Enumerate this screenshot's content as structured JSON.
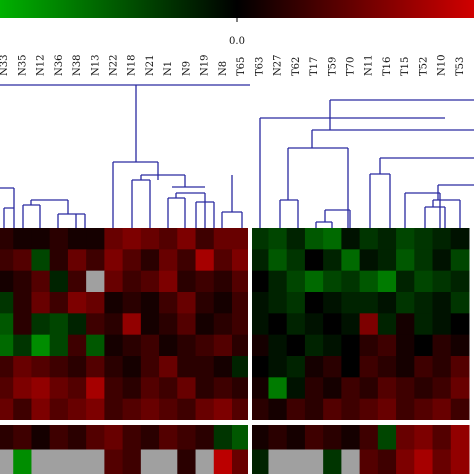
{
  "chart_data": {
    "type": "heatmap",
    "columns": [
      "N33",
      "N35",
      "N12",
      "N36",
      "N38",
      "N13",
      "N22",
      "N18",
      "N21",
      "N1",
      "N9",
      "N19",
      "N8",
      "T65",
      "T63",
      "N27",
      "T62",
      "T17",
      "T59",
      "T70",
      "N11",
      "T16",
      "T15",
      "T52",
      "N10",
      "T53"
    ],
    "color_scale": [
      "#00b000",
      "#000000",
      "#d00000"
    ],
    "clim": [
      -1,
      1
    ],
    "colorbar_ticks": [
      {
        "value": 0,
        "label": "0.0"
      }
    ],
    "missing_color": "#a0a0a0",
    "rows": [
      [
        0.2,
        0.1,
        0.1,
        0.2,
        0.1,
        0.1,
        0.5,
        0.6,
        0.5,
        0.4,
        0.6,
        0.3,
        0.5,
        0.5,
        -0.3,
        -0.4,
        -0.2,
        -0.5,
        -0.6,
        -0.1,
        -0.3,
        -0.2,
        -0.4,
        -0.3,
        -0.2,
        -0.1
      ],
      [
        0.3,
        0.4,
        -0.4,
        0.2,
        0.5,
        0.3,
        0.6,
        0.4,
        0.2,
        0.5,
        0.3,
        0.8,
        0.4,
        0.6,
        -0.2,
        -0.5,
        -0.3,
        0,
        -0.2,
        -0.6,
        -0.1,
        -0.2,
        -0.5,
        -0.3,
        -0.1,
        -0.4
      ],
      [
        0.1,
        0.2,
        0.4,
        -0.2,
        0.3,
        null,
        0.5,
        0.3,
        0.4,
        0.6,
        0.2,
        0.3,
        0.2,
        0.4,
        0,
        -0.2,
        -0.4,
        -0.6,
        -0.4,
        -0.3,
        -0.5,
        -0.7,
        -0.2,
        -0.4,
        -0.3,
        -0.2
      ],
      [
        -0.3,
        0.2,
        0.5,
        0.3,
        0.6,
        0.5,
        0.1,
        0.2,
        0.1,
        0.3,
        0.5,
        0.2,
        0.1,
        0.3,
        -0.1,
        -0.2,
        -0.3,
        0,
        -0.1,
        -0.2,
        -0.2,
        -0.1,
        -0.3,
        -0.2,
        -0.1,
        -0.3
      ],
      [
        -0.5,
        0.2,
        -0.3,
        -0.4,
        -0.2,
        0.3,
        0.2,
        0.7,
        0.1,
        0.2,
        0.4,
        0.1,
        0.2,
        0.3,
        -0.1,
        0,
        -0.2,
        -0.1,
        0,
        -0.1,
        0.6,
        -0.2,
        0.1,
        -0.2,
        -0.1,
        0
      ],
      [
        -0.6,
        -0.3,
        -0.8,
        -0.4,
        0.3,
        -0.5,
        0.1,
        0.2,
        0.3,
        0.1,
        0.2,
        0.3,
        0.4,
        0.2,
        0.1,
        -0.1,
        0,
        -0.2,
        -0.1,
        0,
        0.2,
        0.3,
        0.1,
        0,
        0.2,
        0.1
      ],
      [
        0.3,
        0.5,
        0.4,
        0.3,
        0.2,
        0.4,
        0.2,
        0.1,
        0.3,
        0.5,
        0.2,
        0.2,
        0.1,
        -0.2,
        0,
        -0.1,
        -0.2,
        0.1,
        0.2,
        0,
        0.3,
        0.2,
        0.1,
        0.3,
        0.2,
        0.4
      ],
      [
        0.4,
        0.6,
        0.7,
        0.5,
        0.4,
        0.8,
        0.3,
        0.2,
        0.4,
        0.3,
        0.5,
        0.2,
        0.3,
        0.2,
        0.1,
        -0.7,
        -0.1,
        0.2,
        0.1,
        0.3,
        0.2,
        0.4,
        0.3,
        0.2,
        0.3,
        0.5
      ],
      [
        0.5,
        0.3,
        0.6,
        0.4,
        0.5,
        0.6,
        0.3,
        0.4,
        0.5,
        0.4,
        0.3,
        0.5,
        0.6,
        0.4,
        0.2,
        0.1,
        0.3,
        0.2,
        0.4,
        0.3,
        0.4,
        0.5,
        0.3,
        0.4,
        0.5,
        0.3
      ]
    ],
    "lower_rows": [
      [
        0.2,
        0.3,
        0.1,
        0.3,
        0.2,
        0.4,
        0.5,
        0.3,
        0.2,
        0.4,
        0.3,
        0.2,
        -0.3,
        -0.5,
        0.1,
        0.2,
        0.1,
        0.3,
        0.2,
        0.1,
        0.3,
        -0.4,
        0.5,
        0.6,
        0.4,
        0.7
      ],
      [
        null,
        -0.8,
        null,
        null,
        null,
        null,
        0.4,
        0.3,
        null,
        null,
        0.2,
        null,
        0.9,
        0.5,
        -0.2,
        null,
        null,
        null,
        -0.3,
        null,
        0.4,
        0.3,
        0.6,
        0.8,
        0.5,
        0.7
      ]
    ]
  }
}
